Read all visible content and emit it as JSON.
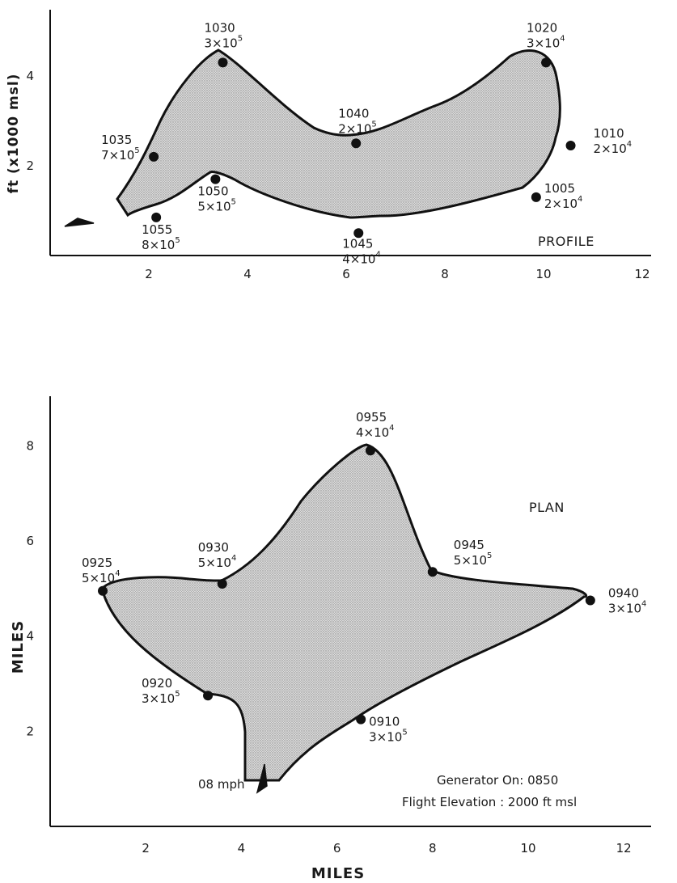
{
  "chart_data": [
    {
      "type": "scatter",
      "title": "PROFILE",
      "xlabel": "",
      "ylabel": "ft (x1000 msl)",
      "xlim": [
        0,
        12.5
      ],
      "ylim": [
        0,
        5
      ],
      "x_ticks": [
        2,
        4,
        6,
        8,
        10,
        12
      ],
      "y_ticks": [
        2,
        4
      ],
      "grid": false,
      "points": [
        {
          "time": "1005",
          "conc": "2×10",
          "exp": "4",
          "x": 9.85,
          "y": 1.3
        },
        {
          "time": "1010",
          "conc": "2×10",
          "exp": "4",
          "x": 10.55,
          "y": 2.45
        },
        {
          "time": "1020",
          "conc": "3×10",
          "exp": "4",
          "x": 10.05,
          "y": 4.3
        },
        {
          "time": "1030",
          "conc": "3×10",
          "exp": "5",
          "x": 3.5,
          "y": 4.3
        },
        {
          "time": "1035",
          "conc": "7×10",
          "exp": "5",
          "x": 2.1,
          "y": 2.2
        },
        {
          "time": "1040",
          "conc": "2×10",
          "exp": "5",
          "x": 6.2,
          "y": 2.5
        },
        {
          "time": "1045",
          "conc": "4×10",
          "exp": "4",
          "x": 6.25,
          "y": 0.5
        },
        {
          "time": "1050",
          "conc": "5×10",
          "exp": "5",
          "x": 3.35,
          "y": 1.7
        },
        {
          "time": "1055",
          "conc": "8×10",
          "exp": "5",
          "x": 2.15,
          "y": 0.85
        }
      ]
    },
    {
      "type": "scatter",
      "title": "PLAN",
      "xlabel": "MILES",
      "ylabel": "MILES",
      "xlim": [
        0,
        12.5
      ],
      "ylim": [
        0,
        9
      ],
      "x_ticks": [
        2,
        4,
        6,
        8,
        10,
        12
      ],
      "y_ticks": [
        2,
        4,
        6,
        8
      ],
      "grid": false,
      "points": [
        {
          "time": "0910",
          "conc": "3×10",
          "exp": "5",
          "x": 6.5,
          "y": 2.25
        },
        {
          "time": "0920",
          "conc": "3×10",
          "exp": "5",
          "x": 3.3,
          "y": 2.75
        },
        {
          "time": "0925",
          "conc": "5×10",
          "exp": "4",
          "x": 1.1,
          "y": 4.95
        },
        {
          "time": "0930",
          "conc": "5×10",
          "exp": "4",
          "x": 3.6,
          "y": 5.1
        },
        {
          "time": "0940",
          "conc": "3×10",
          "exp": "4",
          "x": 11.3,
          "y": 4.75
        },
        {
          "time": "0945",
          "conc": "5×10",
          "exp": "5",
          "x": 8.0,
          "y": 5.35
        },
        {
          "time": "0955",
          "conc": "4×10",
          "exp": "4",
          "x": 6.7,
          "y": 7.9
        }
      ],
      "annotations": {
        "wind": "08 mph",
        "generator": "Generator  On:  0850",
        "flight": "Flight  Elevation  :  2000  ft  msl"
      }
    }
  ]
}
